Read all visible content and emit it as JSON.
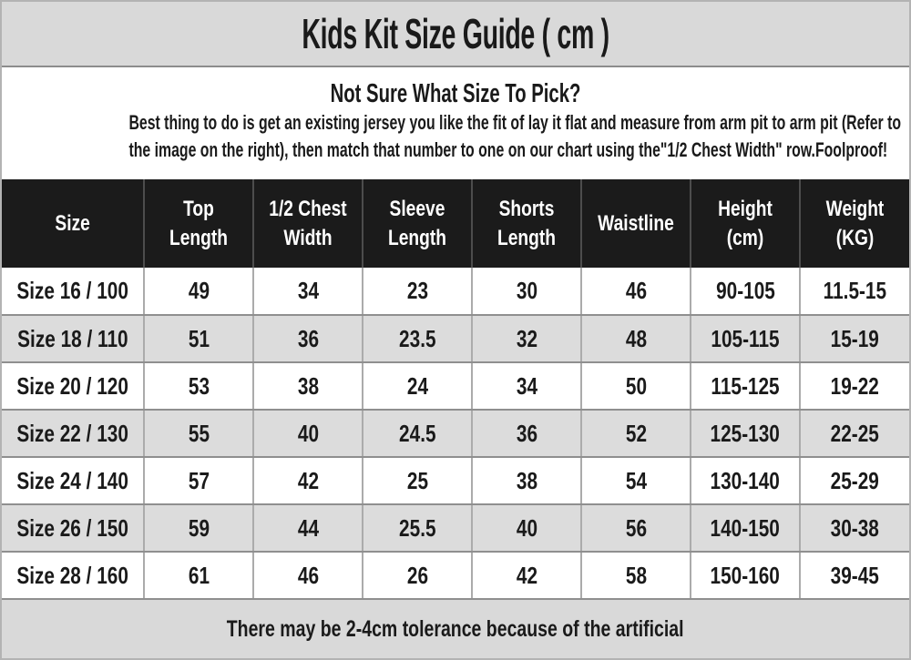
{
  "title_bar": {
    "title": "Kids Kit Size Guide ( cm )"
  },
  "intro": {
    "heading": "Not Sure What Size To Pick?",
    "body_lines": [
      "Best thing to do is get an existing jersey you like the fit of lay it flat and measure from arm pit to arm pit (Refer to",
      "the image on the right), then match that number to one on our chart using the\"1/2 Chest Width\" row.Foolproof!"
    ]
  },
  "table": {
    "headers": [
      [
        "Size"
      ],
      [
        "Top",
        "Length"
      ],
      [
        "1/2 Chest",
        "Width"
      ],
      [
        "Sleeve",
        "Length"
      ],
      [
        "Shorts",
        "Length"
      ],
      [
        "Waistline"
      ],
      [
        "Height",
        "(cm)"
      ],
      [
        "Weight",
        "(KG)"
      ]
    ],
    "rows": [
      [
        "Size 16 / 100",
        "49",
        "34",
        "23",
        "30",
        "46",
        "90-105",
        "11.5-15"
      ],
      [
        "Size 18 / 110",
        "51",
        "36",
        "23.5",
        "32",
        "48",
        "105-115",
        "15-19"
      ],
      [
        "Size 20 / 120",
        "53",
        "38",
        "24",
        "34",
        "50",
        "115-125",
        "19-22"
      ],
      [
        "Size 22 / 130",
        "55",
        "40",
        "24.5",
        "36",
        "52",
        "125-130",
        "22-25"
      ],
      [
        "Size 24 / 140",
        "57",
        "42",
        "25",
        "38",
        "54",
        "130-140",
        "25-29"
      ],
      [
        "Size 26 / 150",
        "59",
        "44",
        "25.5",
        "40",
        "56",
        "140-150",
        "30-38"
      ],
      [
        "Size 28 / 160",
        "61",
        "46",
        "26",
        "42",
        "58",
        "150-160",
        "39-45"
      ]
    ]
  },
  "footer": {
    "note": "There may be 2-4cm tolerance because of the artificial"
  },
  "colors": {
    "bar_bg": "#d9d9d9",
    "row_alt_bg": "#dcdcdc",
    "header_bg": "#1b1b1b",
    "header_text": "#ffffff",
    "grid_line": "#8f8f8f",
    "column_line": "#ababab",
    "text": "#1a1a1a"
  }
}
